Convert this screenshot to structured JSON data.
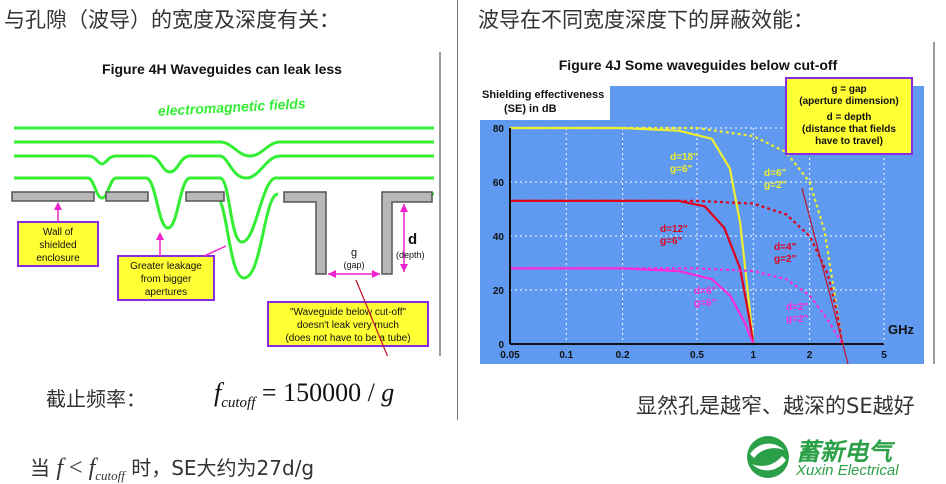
{
  "left": {
    "heading": "与孔隙（波导）的宽度及深度有关：",
    "figure_title": "Figure 4H    Waveguides can leak less",
    "fields_label": "electromagnetic fields",
    "wall_label": [
      "Wall of",
      "shielded",
      "enclosure"
    ],
    "leakage_label": [
      "Greater leakage",
      "from bigger",
      "apertures"
    ],
    "gap_label": [
      "g",
      "(gap)"
    ],
    "depth_label": [
      "d",
      "(depth)"
    ],
    "waveguide_note": [
      "\"Waveguide below cut-off\"",
      "doesn't leak very much",
      "(does not have to be a tube)"
    ],
    "cutoff_label": "截止频率：",
    "formula": {
      "f": "f",
      "sub": "cutoff",
      "eq": " = 150000 / ",
      "g": "g"
    },
    "condition": {
      "prefix": "当",
      "f1": "f",
      "lt": " < ",
      "f2": "f",
      "sub": "cutoff",
      "suffix": "时，SE大约为27d/g"
    }
  },
  "right": {
    "heading": "波导在不同宽度深度下的屏蔽效能：",
    "figure_title": "Figure 4J   Some waveguides below cut-off",
    "y_label": [
      "Shielding effectiveness",
      "(SE) in dB"
    ],
    "x_unit": "GHz",
    "legend": [
      "g  = gap",
      "(aperture dimension)",
      "d  = depth",
      "(distance that fields",
      "have to travel)"
    ],
    "note": "显然孔是越窄、越深的SE越好",
    "logo": {
      "cn": "蓄新电气",
      "en": "Xuxin Electrical"
    }
  },
  "colors": {
    "accent_green": "#33ee33",
    "panel_blue": "#5f9af0",
    "label_yellow": "#ffff33",
    "label_border": "#8a2be2",
    "yellow_curve": "#eeee33",
    "red_curve": "#e0001b",
    "magenta_curve": "#ff2ad4",
    "logo_green": "#2ca048"
  },
  "chart_data": {
    "type": "line",
    "x_scale": "log",
    "xlabel": "GHz",
    "ylabel": "Shielding effectiveness (SE) in dB",
    "x_ticks": [
      "0.05",
      "0.1",
      "0.2",
      "0.5",
      "1",
      "2",
      "5"
    ],
    "y_ticks": [
      "0",
      "20",
      "40",
      "60",
      "80"
    ],
    "xlim": [
      0.05,
      5
    ],
    "ylim": [
      0,
      80
    ],
    "grid": true,
    "series": [
      {
        "name": "d=18\" g=6\"",
        "style": "solid",
        "color": "#eeee33",
        "x": [
          0.05,
          0.2,
          0.4,
          0.6,
          0.75,
          0.85,
          0.95,
          1.0
        ],
        "y": [
          80,
          80,
          79,
          76,
          65,
          45,
          15,
          0
        ]
      },
      {
        "name": "d=6\" g=2\"",
        "style": "dashed",
        "color": "#eeee33",
        "x": [
          0.05,
          0.5,
          1.0,
          1.5,
          2.0,
          2.4,
          2.7,
          3.0
        ],
        "y": [
          80,
          80,
          77,
          71,
          60,
          42,
          20,
          0
        ]
      },
      {
        "name": "d=12\" g=6\"",
        "style": "solid",
        "color": "#e0001b",
        "x": [
          0.05,
          0.2,
          0.4,
          0.55,
          0.7,
          0.85,
          0.95,
          1.0
        ],
        "y": [
          53,
          53,
          53,
          51,
          43,
          28,
          10,
          0
        ]
      },
      {
        "name": "d=4\" g=2\"",
        "style": "dashed",
        "color": "#e0001b",
        "x": [
          0.05,
          0.5,
          1.0,
          1.5,
          2.0,
          2.5,
          2.8,
          3.0
        ],
        "y": [
          53,
          53,
          52,
          48,
          40,
          26,
          12,
          0
        ]
      },
      {
        "name": "d=6\" g=6\"",
        "style": "solid",
        "color": "#ff2ad4",
        "x": [
          0.05,
          0.2,
          0.4,
          0.6,
          0.75,
          0.9,
          1.0
        ],
        "y": [
          28,
          28,
          27,
          24,
          18,
          8,
          0
        ]
      },
      {
        "name": "d=2\" g=2\"",
        "style": "dashed",
        "color": "#ff2ad4",
        "x": [
          0.05,
          0.5,
          1.0,
          1.5,
          2.0,
          2.5,
          3.0
        ],
        "y": [
          28,
          28,
          27,
          24,
          18,
          9,
          0
        ]
      }
    ]
  }
}
